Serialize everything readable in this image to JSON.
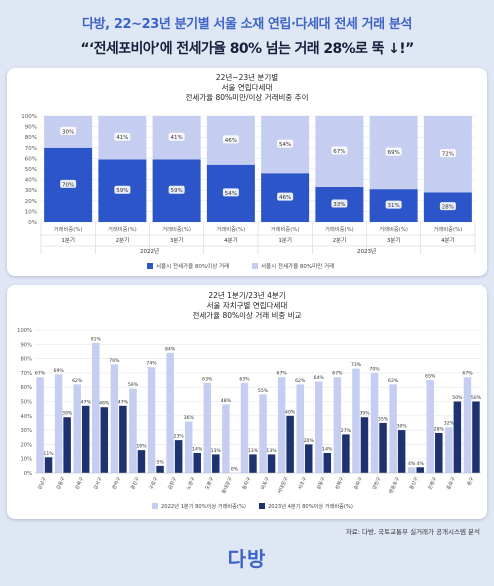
{
  "header": {
    "line1": "다방, 22~23년 분기별 서울 소재 연립·다세대 전세 거래 분석",
    "line2": "“‘전세포비아’에 전세가율 80% 넘는 거래 28%로 뚝 ↓!”"
  },
  "source": "자료: 다방, 국토교통부 실거래가 공개시스템 분석",
  "logo": "다방",
  "colors": {
    "dark": "#2b55c9",
    "light": "#a9b7ea",
    "pale": "#c5cef1",
    "navy": "#1e3270",
    "bg": "#dfe7f4"
  },
  "chart_data": [
    {
      "type": "bar",
      "stacked": true,
      "title": [
        "22년~23년 분기별",
        "서울 연립다세대",
        "전세가율 80%미만/이상 거래비중 추이"
      ],
      "ylim": [
        0,
        100
      ],
      "yticks": [
        "0%",
        "10%",
        "20%",
        "30%",
        "40%",
        "50%",
        "60%",
        "70%",
        "80%",
        "90%",
        "100%"
      ],
      "categories": [
        "1분기",
        "2분기",
        "3분기",
        "4분기",
        "1분기",
        "2분기",
        "3분기",
        "4분기"
      ],
      "category_sublabel": "거래비중(%)",
      "years": [
        "2022년",
        "2023년"
      ],
      "series": [
        {
          "name": "서울시 전세가율 80%이상 거래",
          "values": [
            70,
            59,
            59,
            54,
            46,
            33,
            31,
            28
          ]
        },
        {
          "name": "서울시 전세가율 80%미만 거래",
          "values": [
            30,
            41,
            41,
            46,
            54,
            67,
            69,
            72
          ]
        }
      ],
      "value_labels": [
        "70%",
        "59%",
        "59%",
        "54%",
        "46%",
        "33%",
        "31%",
        "28%",
        "30%",
        "41%",
        "41%",
        "46%",
        "54%",
        "67%",
        "69%",
        "72%"
      ],
      "legend_position": "bottom"
    },
    {
      "type": "bar",
      "title": [
        "22년 1분기/23년 4분기",
        "서울 자치구별 연립다세대",
        "전세가율 80%이상 거래 비중 비교"
      ],
      "ylim": [
        0,
        100
      ],
      "yticks": [
        "0%",
        "10%",
        "20%",
        "30%",
        "40%",
        "50%",
        "60%",
        "70%",
        "80%",
        "90%",
        "100%"
      ],
      "categories": [
        "강남구",
        "강동구",
        "강북구",
        "강서구",
        "관악구",
        "광진구",
        "구로구",
        "금천구",
        "노원구",
        "도봉구",
        "동대문구",
        "동작구",
        "마포구",
        "서대문구",
        "서초구",
        "성동구",
        "성북구",
        "송파구",
        "양천구",
        "영등포구",
        "용산구",
        "은평구",
        "종로구",
        "중구"
      ],
      "series": [
        {
          "name": "2022년 1분기 80%이상 거래비중(%)",
          "values": [
            67,
            69,
            62,
            91,
            76,
            59,
            74,
            84,
            36,
            63,
            48,
            63,
            55,
            67,
            62,
            64,
            67,
            73,
            70,
            62,
            4,
            65,
            32,
            67
          ]
        },
        {
          "name": "2023년 4분기 80%이상 거래비중(%)",
          "values": [
            11,
            39,
            47,
            46,
            47,
            16,
            5,
            23,
            14,
            13,
            0,
            13,
            13,
            40,
            20,
            14,
            27,
            39,
            35,
            30,
            4,
            28,
            50,
            50
          ]
        }
      ],
      "value_labels_1": [
        "67%",
        "69%",
        "62%",
        "91%",
        "76%",
        "59%",
        "74%",
        "84%",
        "36%",
        "63%",
        "48%",
        "63%",
        "55%",
        "67%",
        "62%",
        "64%",
        "67%",
        "73%",
        "70%",
        "62%",
        "4%",
        "65%",
        "32%",
        "67%"
      ],
      "value_labels_2": [
        "11%",
        "39%",
        "47%",
        "46%",
        "47%",
        "16%",
        "5%",
        "23%",
        "14%",
        "13%",
        "0%",
        "13%",
        "13%",
        "40%",
        "20%",
        "14%",
        "27%",
        "39%",
        "35%",
        "30%",
        "4%",
        "28%",
        "50%",
        "50%"
      ],
      "legend_position": "bottom"
    }
  ]
}
